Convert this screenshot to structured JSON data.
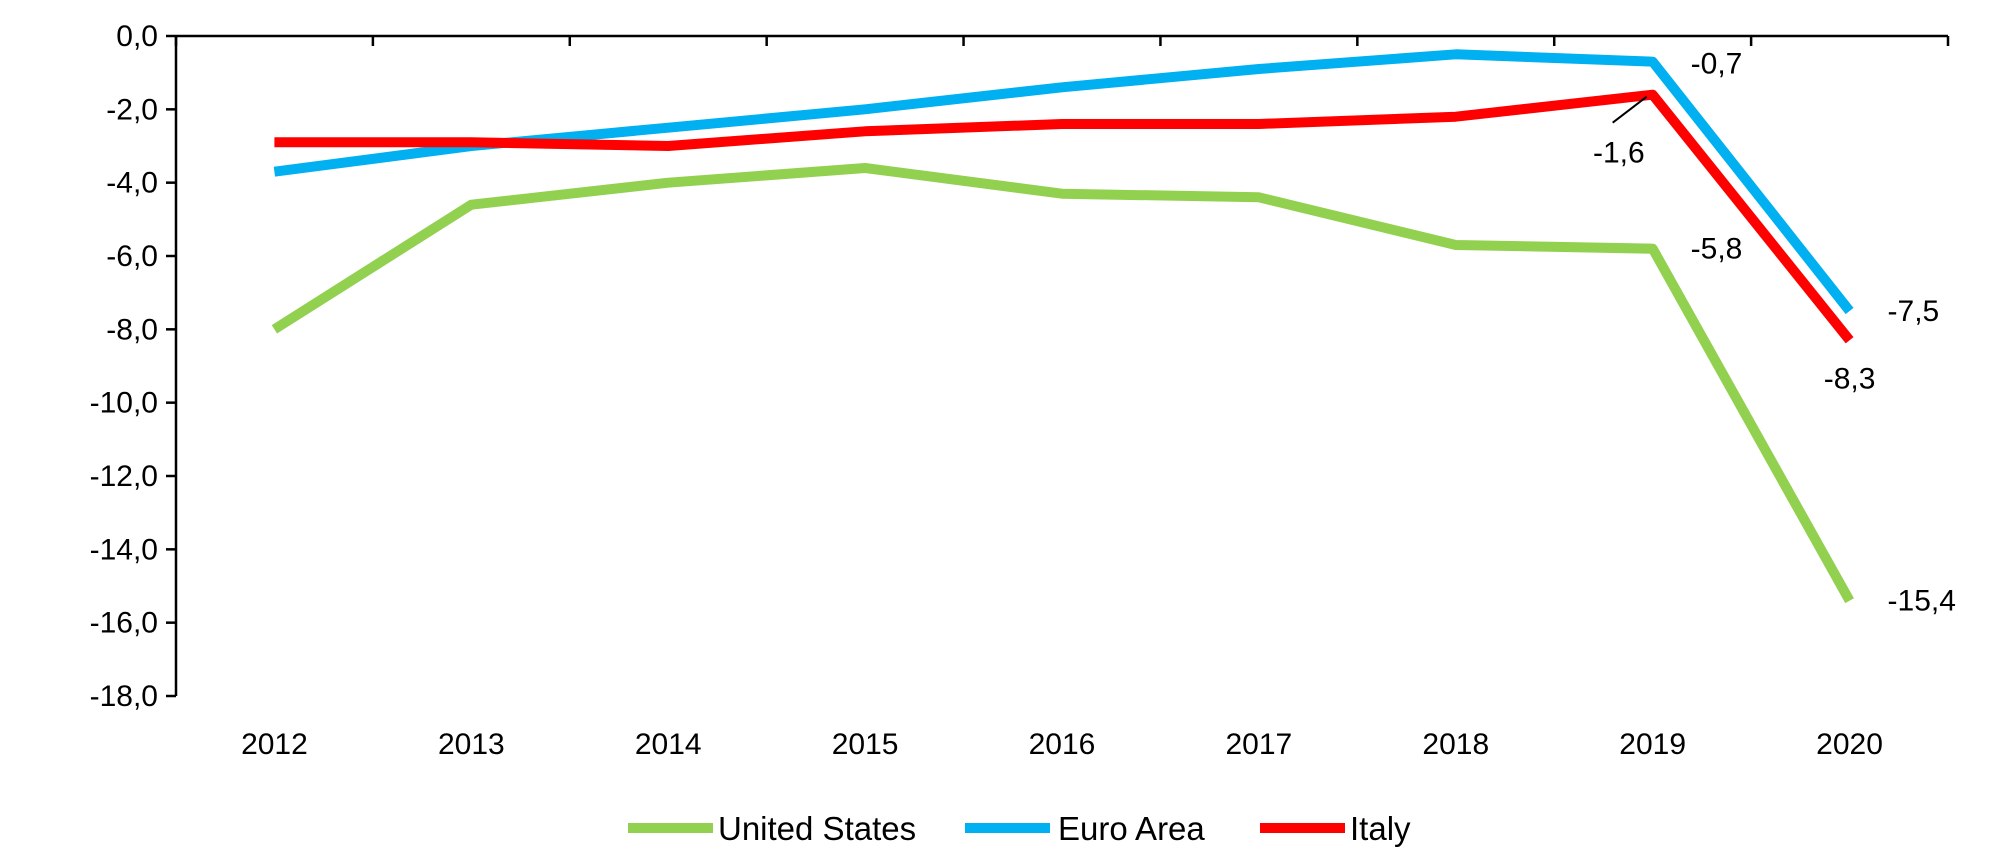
{
  "chart_data": {
    "type": "line",
    "categories": [
      "2012",
      "2013",
      "2014",
      "2015",
      "2016",
      "2017",
      "2018",
      "2019",
      "2020"
    ],
    "series": [
      {
        "name": "United States",
        "color": "#92D050",
        "values": [
          -8.0,
          -4.6,
          -4.0,
          -3.6,
          -4.3,
          -4.4,
          -5.7,
          -5.8,
          -15.4
        ]
      },
      {
        "name": "Euro Area",
        "color": "#00B0F0",
        "values": [
          -3.7,
          -3.0,
          -2.5,
          -2.0,
          -1.4,
          -0.9,
          -0.5,
          -0.7,
          -7.5
        ]
      },
      {
        "name": "Italy",
        "color": "#FF0000",
        "values": [
          -2.9,
          -2.9,
          -3.0,
          -2.6,
          -2.4,
          -2.4,
          -2.2,
          -1.6,
          -8.3
        ]
      }
    ],
    "data_labels": [
      {
        "series": "Euro Area",
        "category": "2019",
        "text": "-0,7"
      },
      {
        "series": "Italy",
        "category": "2019",
        "text": "-1,6"
      },
      {
        "series": "United States",
        "category": "2019",
        "text": "-5,8"
      },
      {
        "series": "Euro Area",
        "category": "2020",
        "text": "-7,5"
      },
      {
        "series": "Italy",
        "category": "2020",
        "text": "-8,3"
      },
      {
        "series": "United States",
        "category": "2020",
        "text": "-15,4"
      }
    ],
    "y_ticks": [
      "0,0",
      "-2,0",
      "-4,0",
      "-6,0",
      "-8,0",
      "-10,0",
      "-12,0",
      "-14,0",
      "-16,0",
      "-18,0"
    ],
    "ylim": [
      -18,
      0
    ],
    "y_step": 2,
    "grid": false,
    "legend_position": "bottom"
  }
}
